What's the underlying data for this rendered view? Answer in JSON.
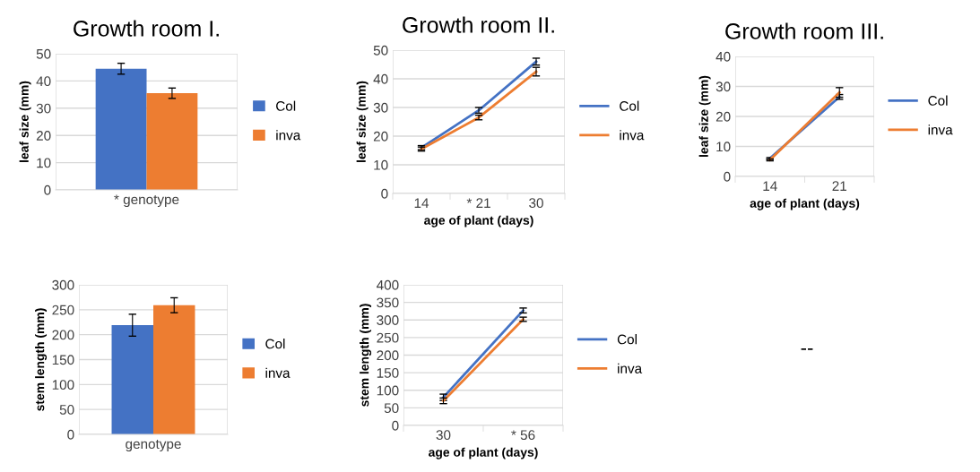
{
  "chart_data": [
    {
      "type": "bar",
      "title": "Growth room I.",
      "ylabel": "leaf size (mm)",
      "categories": [
        "* genotype"
      ],
      "ylim": [
        0,
        50
      ],
      "yticks": [
        0,
        10,
        20,
        30,
        40,
        50
      ],
      "grid": "y",
      "legend": "right",
      "series": [
        {
          "name": "Col",
          "color": "#4472c4",
          "values": [
            44.5
          ],
          "errors": [
            2
          ]
        },
        {
          "name": "inva",
          "color": "#ed7d31",
          "values": [
            35.5
          ],
          "errors": [
            1.9
          ]
        }
      ]
    },
    {
      "type": "line",
      "title": "Growth room II.",
      "ylabel": "leaf size (mm)",
      "xlabel": "age of plant (days)",
      "categories": [
        "14",
        "* 21",
        "30"
      ],
      "ylim": [
        0,
        50
      ],
      "yticks": [
        0,
        10,
        20,
        30,
        40,
        50
      ],
      "grid": "y",
      "legend": "right",
      "marker": "none",
      "line_style": "solid",
      "series": [
        {
          "name": "Col",
          "color": "#4472c4",
          "values": [
            16,
            29,
            46
          ],
          "errors": [
            0.7,
            1,
            1.2
          ]
        },
        {
          "name": "inva",
          "color": "#ed7d31",
          "values": [
            15.5,
            26.5,
            42.5
          ],
          "errors": [
            0.7,
            0.8,
            1.5
          ]
        }
      ]
    },
    {
      "type": "line",
      "title": "Growth room III.",
      "ylabel": "leaf size (mm)",
      "xlabel": "age of plant (days)",
      "categories": [
        "14",
        "21"
      ],
      "ylim": [
        0,
        40
      ],
      "yticks": [
        0,
        10,
        20,
        30,
        40
      ],
      "grid": "y",
      "legend": "right",
      "marker": "none",
      "line_style": "solid",
      "series": [
        {
          "name": "Col",
          "color": "#4472c4",
          "values": [
            6,
            26.5
          ],
          "errors": [
            0.3,
            0.8
          ]
        },
        {
          "name": "inva",
          "color": "#ed7d31",
          "values": [
            5.5,
            28
          ],
          "errors": [
            0.3,
            1.6
          ]
        }
      ]
    },
    {
      "type": "bar",
      "ylabel": "stem length (mm)",
      "categories": [
        "genotype"
      ],
      "ylim": [
        0,
        300
      ],
      "yticks": [
        0,
        50,
        100,
        150,
        200,
        250,
        300
      ],
      "grid": "y",
      "legend": "right",
      "series": [
        {
          "name": "Col",
          "color": "#4472c4",
          "values": [
            219
          ],
          "errors": [
            22
          ]
        },
        {
          "name": "inva",
          "color": "#ed7d31",
          "values": [
            259
          ],
          "errors": [
            15
          ]
        }
      ]
    },
    {
      "type": "line",
      "ylabel": "stem length (mm)",
      "xlabel": "age of plant (days)",
      "categories": [
        "30",
        "* 56"
      ],
      "ylim": [
        0,
        400
      ],
      "yticks": [
        0,
        50,
        100,
        150,
        200,
        250,
        300,
        350,
        400
      ],
      "grid": "y",
      "legend": "right",
      "marker": "none",
      "line_style": "solid",
      "series": [
        {
          "name": "Col",
          "color": "#4472c4",
          "values": [
            80,
            327
          ],
          "errors": [
            9,
            7
          ]
        },
        {
          "name": "inva",
          "color": "#ed7d31",
          "values": [
            70,
            302
          ],
          "errors": [
            8,
            6
          ]
        }
      ]
    },
    {
      "type": "other",
      "annotations": [
        "--"
      ]
    }
  ]
}
